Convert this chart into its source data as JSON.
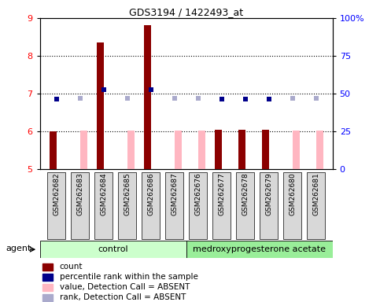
{
  "title": "GDS3194 / 1422493_at",
  "samples": [
    "GSM262682",
    "GSM262683",
    "GSM262684",
    "GSM262685",
    "GSM262686",
    "GSM262687",
    "GSM262676",
    "GSM262677",
    "GSM262678",
    "GSM262679",
    "GSM262680",
    "GSM262681"
  ],
  "bar_values": [
    6.0,
    null,
    8.35,
    null,
    8.82,
    null,
    null,
    6.05,
    6.05,
    6.05,
    null,
    null
  ],
  "absent_bar_values": [
    null,
    6.03,
    null,
    6.03,
    null,
    6.03,
    6.03,
    null,
    null,
    null,
    6.03,
    6.03
  ],
  "rank_values": [
    6.85,
    6.88,
    7.1,
    6.88,
    7.1,
    6.88,
    6.88,
    6.85,
    6.85,
    6.85,
    6.88,
    6.88
  ],
  "rank_absent": [
    false,
    true,
    false,
    true,
    false,
    true,
    true,
    false,
    false,
    false,
    true,
    true
  ],
  "ylim_left": [
    5,
    9
  ],
  "ylim_right": [
    0,
    100
  ],
  "yticks_left": [
    5,
    6,
    7,
    8,
    9
  ],
  "yticks_right": [
    0,
    25,
    50,
    75,
    100
  ],
  "yticklabels_right": [
    "0",
    "25",
    "50",
    "75",
    "100%"
  ],
  "dotted_yticks": [
    6,
    7,
    8
  ],
  "bar_bottom": 5.0,
  "bar_width": 0.3,
  "rank_marker_s": 22,
  "present_color": "#8B0000",
  "absent_bar_color": "#FFB6C1",
  "rank_present_color": "#00008B",
  "rank_absent_color": "#AAAACC",
  "control_color": "#CCFFCC",
  "medroxyp_color": "#99EE99",
  "control_label": "control",
  "medroxyp_label": "medroxyprogesterone acetate",
  "agent_label": "agent",
  "legend_labels": [
    "count",
    "percentile rank within the sample",
    "value, Detection Call = ABSENT",
    "rank, Detection Call = ABSENT"
  ],
  "legend_colors": [
    "#8B0000",
    "#00008B",
    "#FFB6C1",
    "#AAAACC"
  ]
}
